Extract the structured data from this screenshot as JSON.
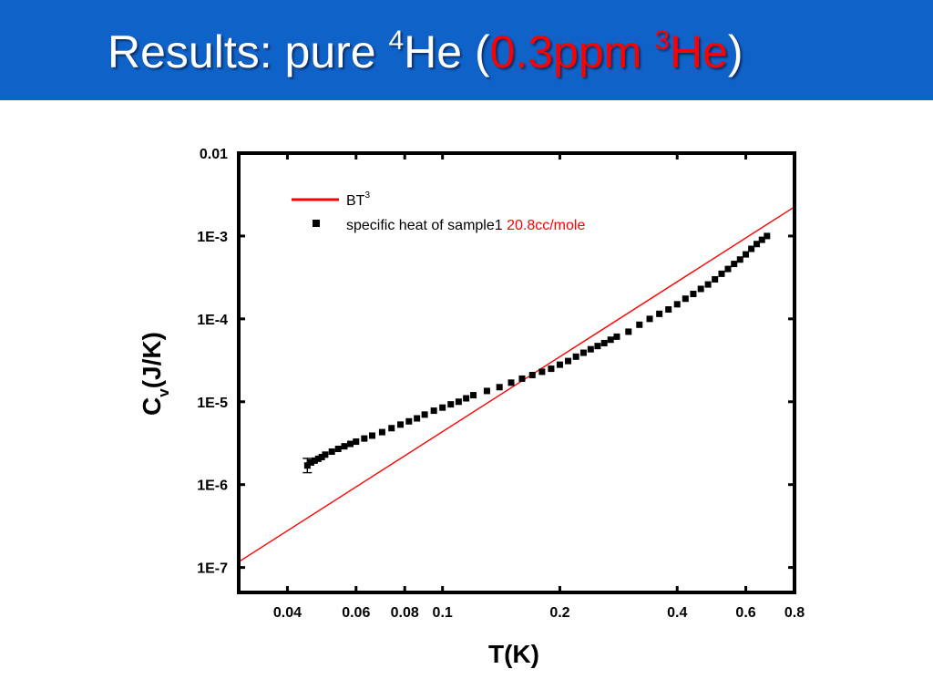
{
  "slide": {
    "title_prefix": "Results: pure ",
    "title_sup1": "4",
    "title_mid": "He (",
    "title_accent_a": "0.3ppm ",
    "title_accent_sup": "3",
    "title_accent_b": "He",
    "title_suffix": ")",
    "colors": {
      "title_bar": "#0f63c8",
      "title_text": "#ffffff",
      "accent": "#ff0000"
    }
  },
  "chart_data": {
    "type": "scatter",
    "title": "",
    "xlabel": "T(K)",
    "ylabel": "C",
    "ylabel_sub": "v",
    "ylabel_tail": "(J/K)",
    "xscale": "log",
    "yscale": "log",
    "xlim": [
      0.03,
      0.8
    ],
    "ylim": [
      5e-08,
      0.01
    ],
    "x_ticks": [
      {
        "value": 0.04,
        "label": "0.04"
      },
      {
        "value": 0.06,
        "label": "0.06"
      },
      {
        "value": 0.08,
        "label": "0.08"
      },
      {
        "value": 0.1,
        "label": "0.1"
      },
      {
        "value": 0.2,
        "label": "0.2"
      },
      {
        "value": 0.4,
        "label": "0.4"
      },
      {
        "value": 0.6,
        "label": "0.6"
      },
      {
        "value": 0.8,
        "label": "0.8"
      }
    ],
    "y_ticks": [
      {
        "value": 1e-07,
        "label": "1E-7"
      },
      {
        "value": 1e-06,
        "label": "1E-6"
      },
      {
        "value": 1e-05,
        "label": "1E-5"
      },
      {
        "value": 0.0001,
        "label": "1E-4"
      },
      {
        "value": 0.001,
        "label": "1E-3"
      },
      {
        "value": 0.01,
        "label": "0.01"
      }
    ],
    "grid": false,
    "legend_position": "top-left",
    "legend": [
      {
        "label": "BT",
        "sup": "3",
        "marker": "line",
        "color": "#ff0000"
      },
      {
        "label": "specific heat of sample1 ",
        "label_accent": "20.8cc/mole",
        "accent_color": "#ff0000",
        "marker": "square",
        "color": "#000000"
      }
    ],
    "series": [
      {
        "name": "BT3",
        "kind": "line",
        "color": "#ff0000",
        "points": [
          [
            0.03,
            1.17e-07
          ],
          [
            0.8,
            0.00225
          ]
        ]
      },
      {
        "name": "specific heat of sample1 20.8cc/mole",
        "kind": "scatter",
        "color": "#000000",
        "points": [
          [
            0.045,
            1.7e-06
          ],
          [
            0.046,
            1.85e-06
          ],
          [
            0.047,
            1.95e-06
          ],
          [
            0.048,
            2.05e-06
          ],
          [
            0.049,
            2.15e-06
          ],
          [
            0.05,
            2.3e-06
          ],
          [
            0.052,
            2.5e-06
          ],
          [
            0.054,
            2.7e-06
          ],
          [
            0.056,
            2.9e-06
          ],
          [
            0.058,
            3.1e-06
          ],
          [
            0.06,
            3.3e-06
          ],
          [
            0.063,
            3.6e-06
          ],
          [
            0.066,
            3.9e-06
          ],
          [
            0.07,
            4.3e-06
          ],
          [
            0.074,
            4.8e-06
          ],
          [
            0.078,
            5.3e-06
          ],
          [
            0.082,
            5.8e-06
          ],
          [
            0.086,
            6.3e-06
          ],
          [
            0.09,
            7e-06
          ],
          [
            0.095,
            7.8e-06
          ],
          [
            0.1,
            8.5e-06
          ],
          [
            0.105,
            9.3e-06
          ],
          [
            0.11,
            1e-05
          ],
          [
            0.115,
            1.1e-05
          ],
          [
            0.12,
            1.2e-05
          ],
          [
            0.13,
            1.35e-05
          ],
          [
            0.14,
            1.5e-05
          ],
          [
            0.15,
            1.7e-05
          ],
          [
            0.16,
            1.9e-05
          ],
          [
            0.17,
            2.1e-05
          ],
          [
            0.18,
            2.3e-05
          ],
          [
            0.19,
            2.5e-05
          ],
          [
            0.2,
            2.8e-05
          ],
          [
            0.21,
            3.1e-05
          ],
          [
            0.22,
            3.5e-05
          ],
          [
            0.23,
            3.9e-05
          ],
          [
            0.24,
            4.3e-05
          ],
          [
            0.25,
            4.7e-05
          ],
          [
            0.26,
            5.1e-05
          ],
          [
            0.27,
            5.6e-05
          ],
          [
            0.28,
            6.1e-05
          ],
          [
            0.3,
            7e-05
          ],
          [
            0.32,
            8.5e-05
          ],
          [
            0.34,
            0.0001
          ],
          [
            0.36,
            0.000115
          ],
          [
            0.38,
            0.00013
          ],
          [
            0.4,
            0.00015
          ],
          [
            0.42,
            0.000175
          ],
          [
            0.44,
            0.0002
          ],
          [
            0.46,
            0.00023
          ],
          [
            0.48,
            0.00026
          ],
          [
            0.5,
            0.0003
          ],
          [
            0.52,
            0.00035
          ],
          [
            0.54,
            0.0004
          ],
          [
            0.56,
            0.00046
          ],
          [
            0.58,
            0.00052
          ],
          [
            0.6,
            0.0006
          ],
          [
            0.62,
            0.0007
          ],
          [
            0.64,
            0.0008
          ],
          [
            0.66,
            0.0009
          ],
          [
            0.68,
            0.001
          ]
        ]
      }
    ]
  }
}
